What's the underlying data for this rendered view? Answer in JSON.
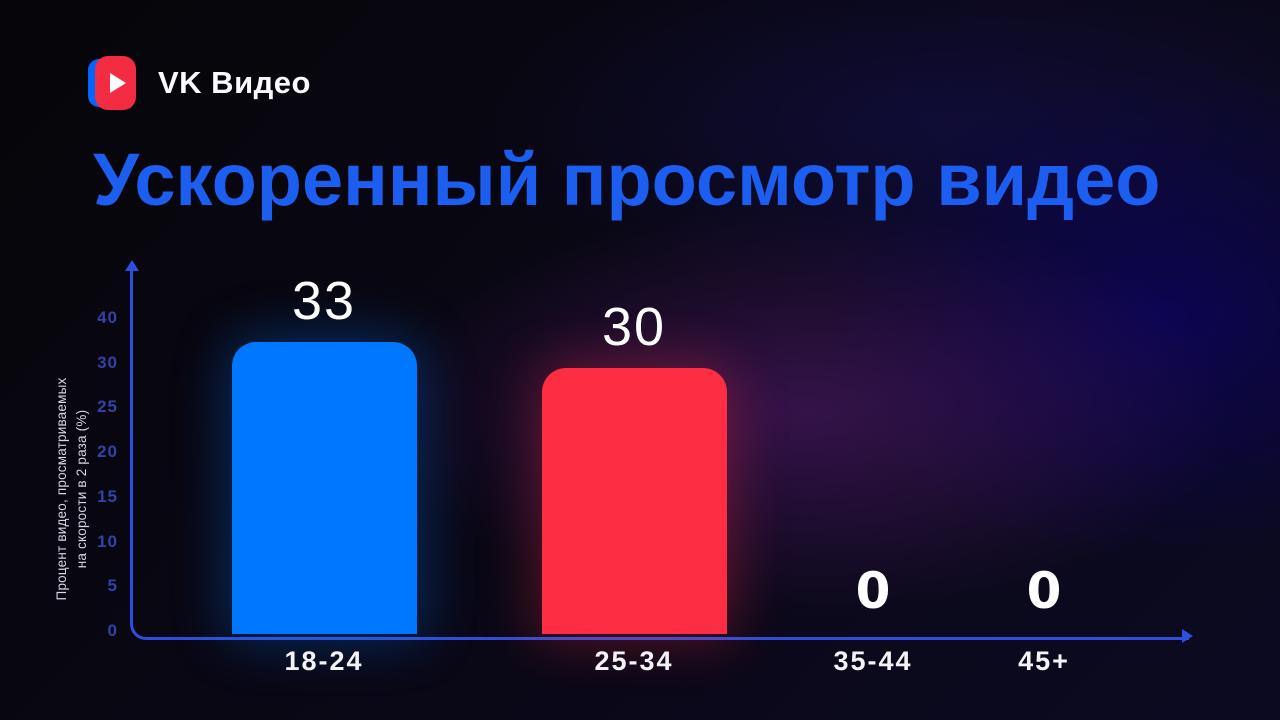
{
  "brand": {
    "name": "VK Видео",
    "icon": "vk-video-play-icon",
    "icon_colors": {
      "blue": "#0066ff",
      "red": "#f32b43",
      "play_triangle": "#ffffff"
    }
  },
  "title": {
    "text": "Ускоренный просмотр видео",
    "color": "#1b5ef0"
  },
  "chart_data": {
    "type": "bar",
    "title": "Ускоренный просмотр видео",
    "categories": [
      "18-24",
      "25-34",
      "35-44",
      "45+"
    ],
    "values": [
      33,
      30,
      0,
      0
    ],
    "bar_colors": [
      "#0077ff",
      "#fd2d43",
      null,
      null
    ],
    "value_label_color": "#ffffff",
    "xlabel": "",
    "ylabel": "Процент видео, просматриваемых на скорости в 2 раза (%)",
    "ylabel_lines": [
      "Процент видео, просматриваемых",
      "на скорости в 2 раза (%)"
    ],
    "y_ticks_top_to_bottom": [
      "40",
      "30",
      "25",
      "20",
      "15",
      "10",
      "5",
      "0"
    ],
    "ylim": [
      0,
      44
    ],
    "grid": false,
    "legend": false,
    "axis_color": "#2c4fe0",
    "tick_label_color": "#3243a8",
    "background_style": "dark navy-purple gradient"
  }
}
